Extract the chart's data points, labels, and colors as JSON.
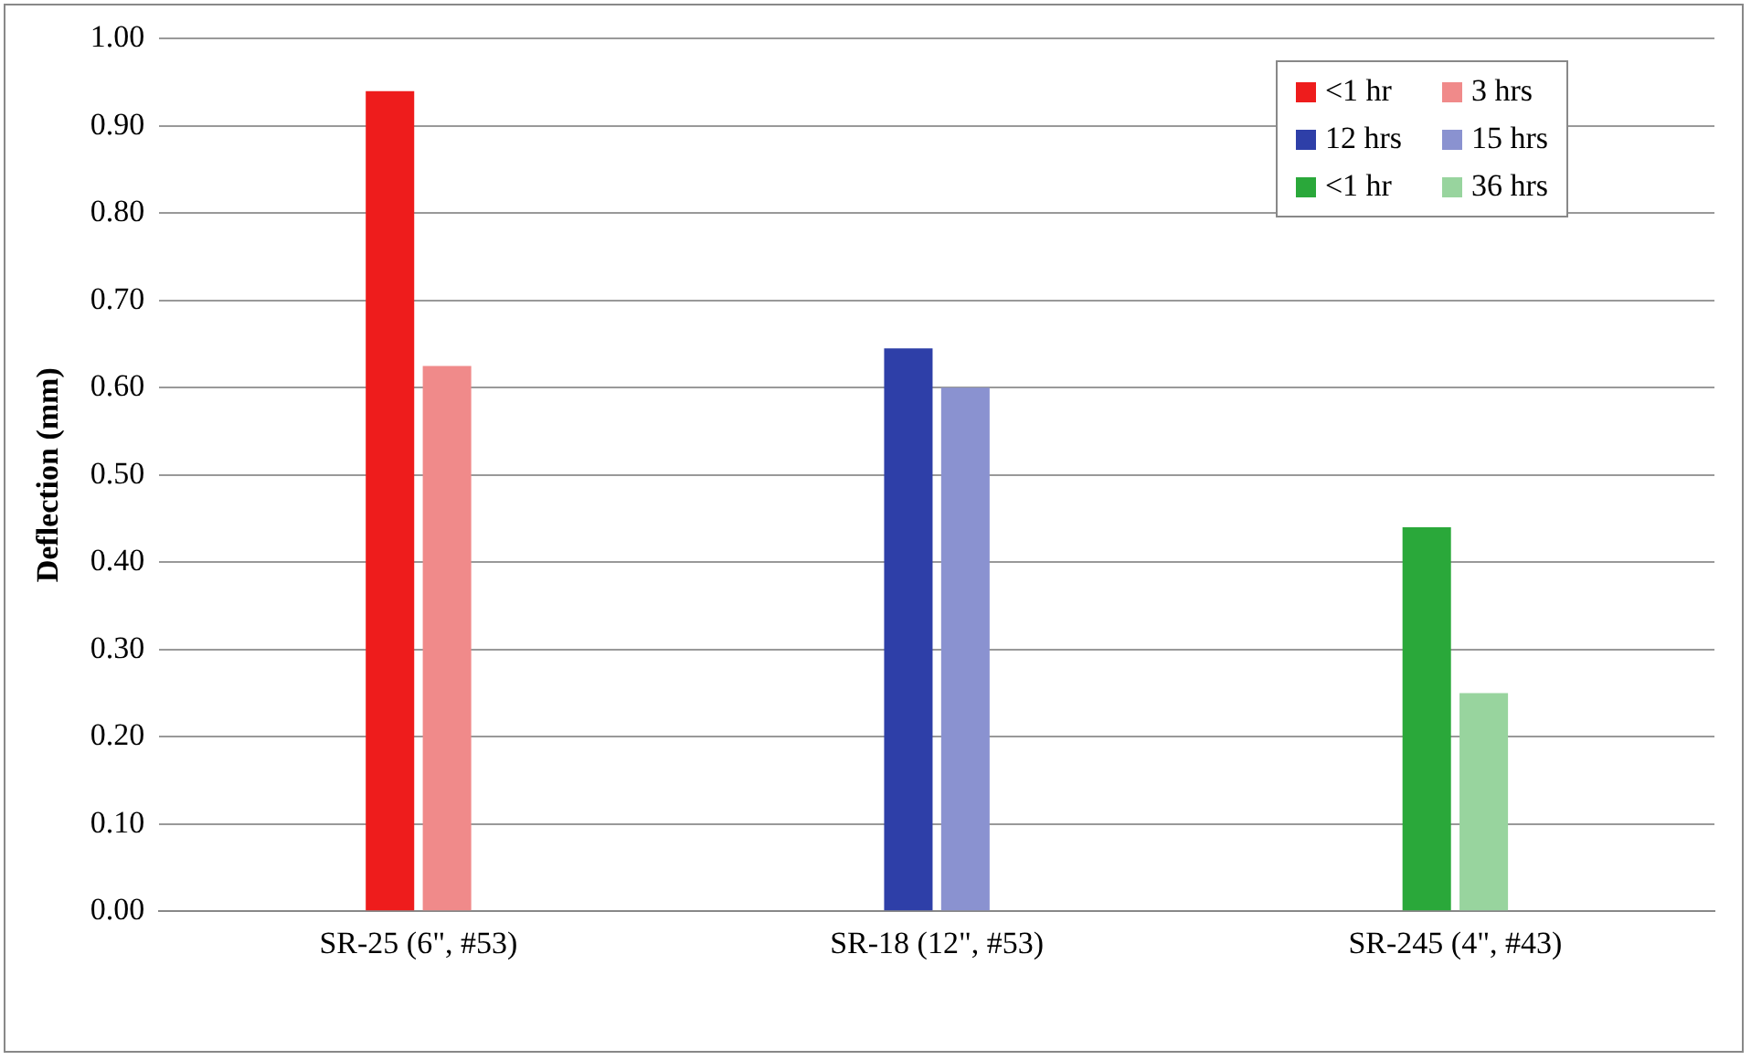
{
  "chart_data": {
    "type": "bar",
    "ylabel": "Deflection (mm)",
    "categories": [
      "SR-25 (6\", #53)",
      "SR-18 (12\", #53)",
      "SR-245 (4\", #43)"
    ],
    "series": [
      {
        "name": "<1 hr",
        "color": "#ee1c1c",
        "values": [
          0.94,
          null,
          null
        ]
      },
      {
        "name": "3 hrs",
        "color": "#f08a8a",
        "values": [
          0.625,
          null,
          null
        ]
      },
      {
        "name": "12 hrs",
        "color": "#2e3fa8",
        "values": [
          null,
          0.645,
          null
        ]
      },
      {
        "name": "15 hrs",
        "color": "#8a92d0",
        "values": [
          null,
          0.6,
          null
        ]
      },
      {
        "name": "<1 hr",
        "color": "#2aa83a",
        "values": [
          null,
          null,
          0.44
        ]
      },
      {
        "name": "36 hrs",
        "color": "#98d49e",
        "values": [
          null,
          null,
          0.25
        ]
      }
    ],
    "ylim": [
      0,
      1
    ],
    "yticks": [
      {
        "value": 0,
        "label": "0.00"
      },
      {
        "value": 0.1,
        "label": "0.10"
      },
      {
        "value": 0.2,
        "label": "0.20"
      },
      {
        "value": 0.3,
        "label": "0.30"
      },
      {
        "value": 0.4,
        "label": "0.40"
      },
      {
        "value": 0.5,
        "label": "0.50"
      },
      {
        "value": 0.6,
        "label": "0.60"
      },
      {
        "value": 0.7,
        "label": "0.70"
      },
      {
        "value": 0.8,
        "label": "0.80"
      },
      {
        "value": 0.9,
        "label": "0.90"
      },
      {
        "value": 1,
        "label": "1.00"
      }
    ],
    "grid": "y",
    "legend": "top right"
  }
}
